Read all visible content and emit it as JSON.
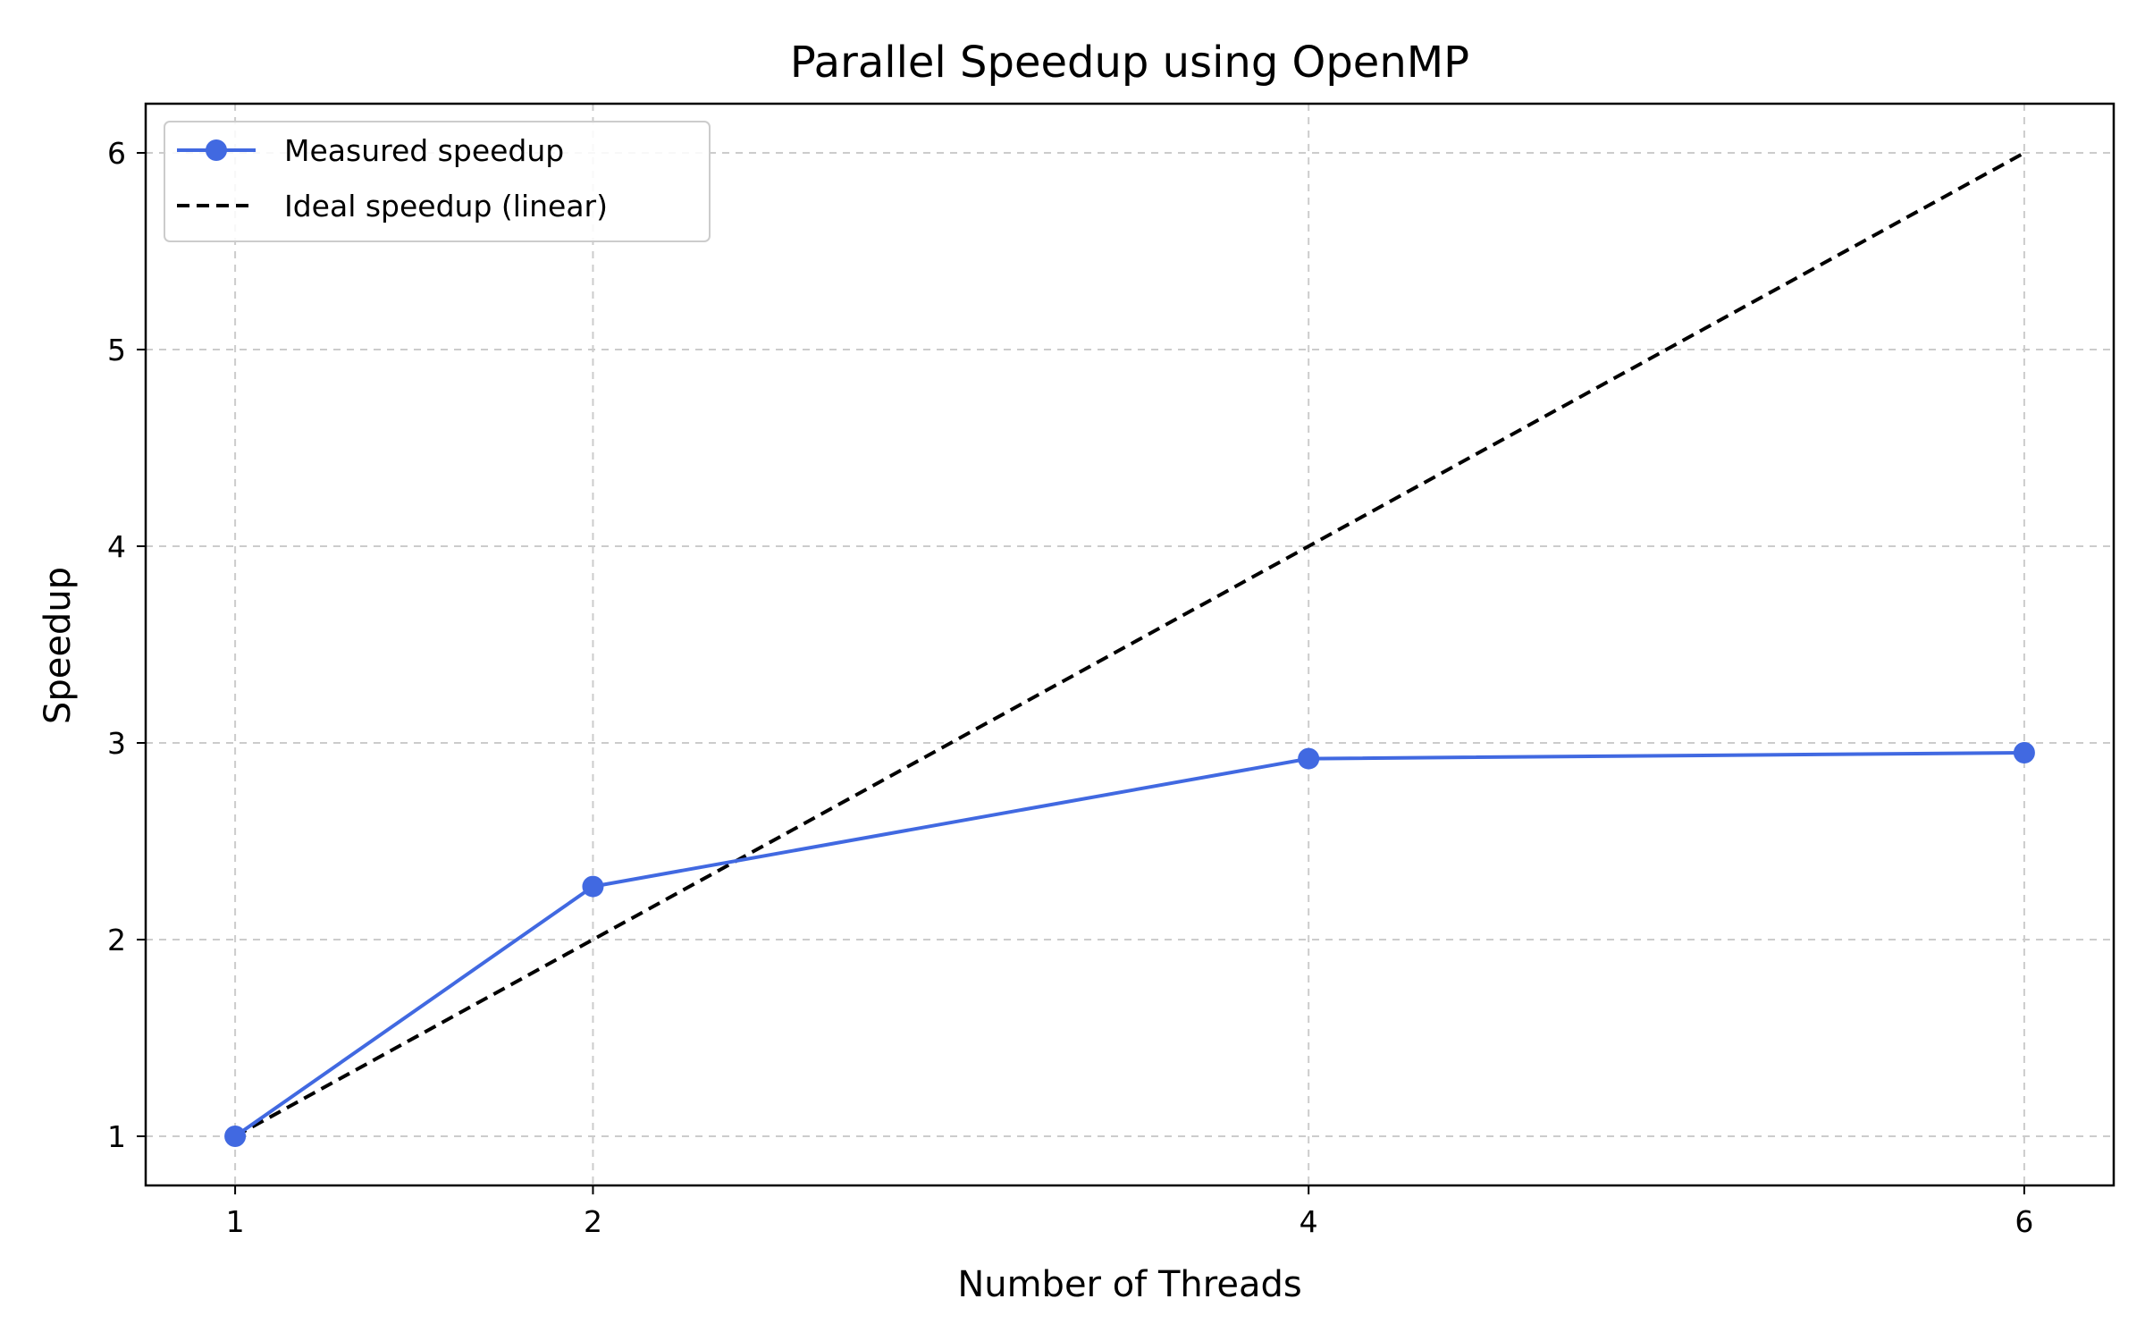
{
  "chart_data": {
    "type": "line",
    "title": "Parallel Speedup using OpenMP",
    "xlabel": "Number of Threads",
    "ylabel": "Speedup",
    "x": [
      1,
      2,
      4,
      6
    ],
    "xticks": [
      "1",
      "2",
      "4",
      "6"
    ],
    "yticks": [
      "1",
      "2",
      "3",
      "4",
      "5",
      "6"
    ],
    "xlim": [
      0.75,
      6.25
    ],
    "ylim": [
      0.75,
      6.25
    ],
    "grid": true,
    "legend_position": "top-left",
    "series": [
      {
        "name": "Measured speedup",
        "values": [
          1.0,
          2.27,
          2.92,
          2.95
        ],
        "color": "#4169e1",
        "style": "solid",
        "marker": "circle"
      },
      {
        "name": "Ideal speedup (linear)",
        "values": [
          1,
          2,
          4,
          6
        ],
        "color": "#000000",
        "style": "dashed",
        "marker": "none"
      }
    ]
  }
}
